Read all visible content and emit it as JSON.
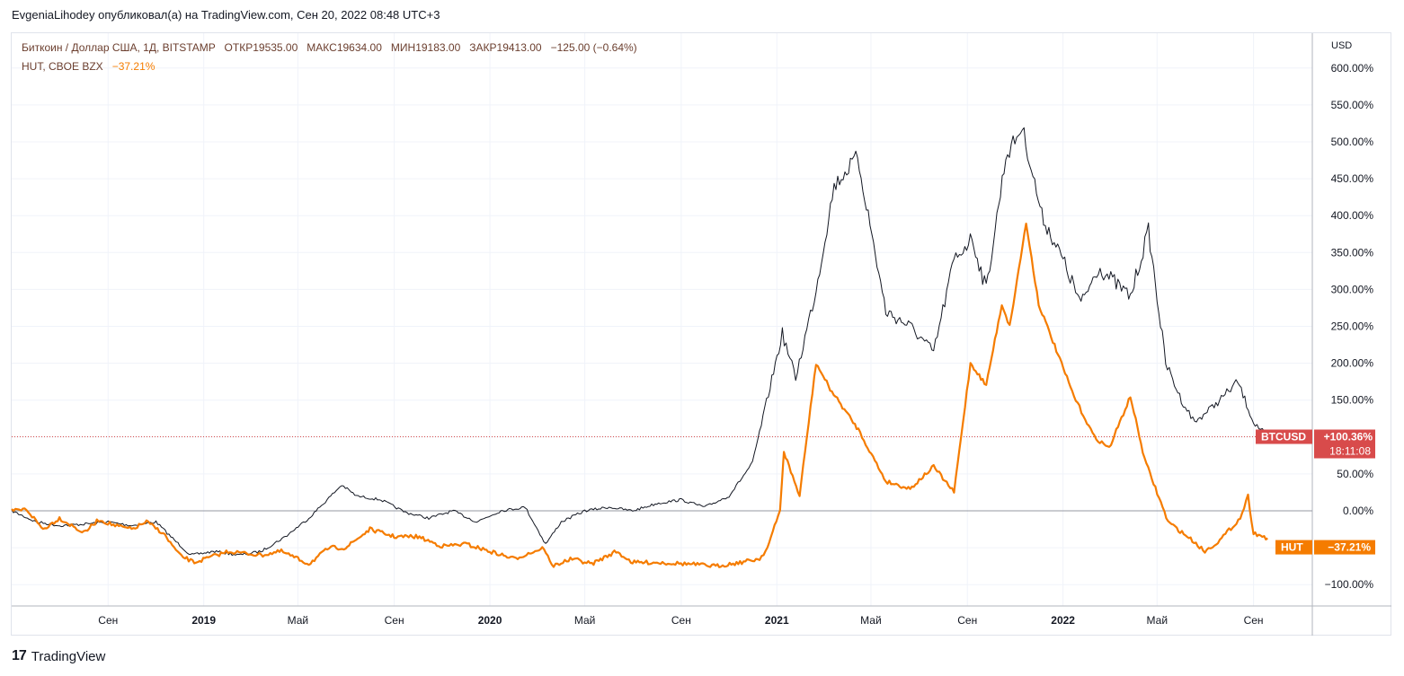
{
  "header": {
    "publish_line": "EvgeniaLihodey опубликовал(а) на TradingView.com, Сен 20, 2022 08:48 UTC+3"
  },
  "legend": {
    "main_symbol": "Биткоин / Доллар США, 1Д, BITSTAMP",
    "open_label": "ОТКР",
    "open_value": "19535.00",
    "high_label": "МАКС",
    "high_value": "19634.00",
    "low_label": "МИН",
    "low_value": "19183.00",
    "close_label": "ЗАКР",
    "close_value": "19413.00",
    "change": "−125.00 (−0.64%)",
    "compare_symbol": "HUT, CBOE BZX",
    "compare_change": "−37.21%"
  },
  "footer": {
    "brand": "TradingView",
    "logo_glyph": "17"
  },
  "chart_data": {
    "type": "line",
    "title": "Биткоин / Доллар США, 1Д, BITSTAMP vs HUT, CBOE BZX",
    "ylabel": "USD",
    "y_unit": "percent change",
    "ylim": [
      -120,
      620
    ],
    "yticks": [
      -100,
      -50,
      0,
      50,
      100,
      150,
      200,
      250,
      300,
      350,
      400,
      450,
      500,
      550,
      600
    ],
    "ytick_labels": [
      "−100.00%",
      "−50.00%",
      "0.00%",
      "50.00%",
      "",
      "150.00%",
      "200.00%",
      "250.00%",
      "300.00%",
      "350.00%",
      "400.00%",
      "450.00%",
      "500.00%",
      "550.00%",
      "600.00%"
    ],
    "xlim": [
      "2018-05-01",
      "2022-11-15"
    ],
    "xticks": [
      {
        "date": "2018-09-01",
        "label": "Сен",
        "bold": false
      },
      {
        "date": "2019-01-01",
        "label": "2019",
        "bold": true
      },
      {
        "date": "2019-05-01",
        "label": "Май",
        "bold": false
      },
      {
        "date": "2019-09-01",
        "label": "Сен",
        "bold": false
      },
      {
        "date": "2020-01-01",
        "label": "2020",
        "bold": true
      },
      {
        "date": "2020-05-01",
        "label": "Май",
        "bold": false
      },
      {
        "date": "2020-09-01",
        "label": "Сен",
        "bold": false
      },
      {
        "date": "2021-01-01",
        "label": "2021",
        "bold": true
      },
      {
        "date": "2021-05-01",
        "label": "Май",
        "bold": false
      },
      {
        "date": "2021-09-01",
        "label": "Сен",
        "bold": false
      },
      {
        "date": "2022-01-01",
        "label": "2022",
        "bold": true
      },
      {
        "date": "2022-05-01",
        "label": "Май",
        "bold": false
      },
      {
        "date": "2022-09-01",
        "label": "Сен",
        "bold": false
      }
    ],
    "baseline": 0,
    "current_line": 100.36,
    "series": [
      {
        "name": "BTCUSD",
        "color": "#131722",
        "last_label": "BTCUSD",
        "last_value": 100.36,
        "last_value_label": "+100.36%",
        "countdown": "18:11:08",
        "badge_color": "#d84b4b",
        "x": [
          "2018-05-01",
          "2018-06-01",
          "2018-07-01",
          "2018-08-01",
          "2018-09-01",
          "2018-10-01",
          "2018-11-01",
          "2018-11-20",
          "2018-12-15",
          "2019-01-15",
          "2019-02-15",
          "2019-03-15",
          "2019-04-15",
          "2019-05-15",
          "2019-06-26",
          "2019-07-15",
          "2019-08-15",
          "2019-09-15",
          "2019-10-15",
          "2019-11-15",
          "2019-12-15",
          "2020-01-15",
          "2020-02-15",
          "2020-03-12",
          "2020-04-01",
          "2020-05-01",
          "2020-06-01",
          "2020-07-01",
          "2020-08-01",
          "2020-09-01",
          "2020-10-01",
          "2020-11-01",
          "2020-12-01",
          "2021-01-08",
          "2021-01-25",
          "2021-02-20",
          "2021-03-15",
          "2021-04-14",
          "2021-05-20",
          "2021-06-20",
          "2021-07-20",
          "2021-08-15",
          "2021-09-07",
          "2021-09-25",
          "2021-10-20",
          "2021-11-10",
          "2021-12-05",
          "2022-01-01",
          "2022-01-24",
          "2022-02-15",
          "2022-03-28",
          "2022-04-20",
          "2022-05-12",
          "2022-06-01",
          "2022-06-18",
          "2022-07-15",
          "2022-08-12",
          "2022-09-01",
          "2022-09-19"
        ],
        "y": [
          0,
          -15,
          -20,
          -18,
          -15,
          -20,
          -15,
          -35,
          -60,
          -55,
          -60,
          -55,
          -35,
          -10,
          35,
          20,
          15,
          -2,
          -10,
          0,
          -15,
          0,
          5,
          -45,
          -15,
          0,
          5,
          0,
          10,
          15,
          5,
          20,
          65,
          240,
          180,
          300,
          440,
          480,
          270,
          250,
          215,
          340,
          370,
          300,
          480,
          520,
          400,
          340,
          280,
          330,
          290,
          380,
          200,
          150,
          120,
          145,
          175,
          120,
          100.36
        ]
      },
      {
        "name": "HUT",
        "color": "#f57c00",
        "last_label": "HUT",
        "last_value": -37.21,
        "last_value_label": "−37.21%",
        "badge_color": "#f57c00",
        "x": [
          "2018-05-01",
          "2018-05-20",
          "2018-06-10",
          "2018-07-01",
          "2018-08-01",
          "2018-08-20",
          "2018-09-10",
          "2018-10-01",
          "2018-10-20",
          "2018-11-10",
          "2018-12-01",
          "2018-12-20",
          "2019-02-01",
          "2019-03-15",
          "2019-04-10",
          "2019-05-15",
          "2019-06-10",
          "2019-07-01",
          "2019-08-01",
          "2019-09-01",
          "2019-10-01",
          "2019-11-01",
          "2019-12-01",
          "2020-01-01",
          "2020-02-01",
          "2020-03-10",
          "2020-03-20",
          "2020-04-15",
          "2020-05-10",
          "2020-06-10",
          "2020-07-01",
          "2020-08-01",
          "2020-09-10",
          "2020-10-15",
          "2020-11-15",
          "2020-12-10",
          "2020-12-20",
          "2021-01-05",
          "2021-01-10",
          "2021-01-30",
          "2021-02-20",
          "2021-03-10",
          "2021-04-15",
          "2021-05-20",
          "2021-06-20",
          "2021-07-20",
          "2021-08-15",
          "2021-09-05",
          "2021-09-25",
          "2021-10-15",
          "2021-10-25",
          "2021-11-15",
          "2021-12-01",
          "2022-01-15",
          "2022-02-10",
          "2022-03-01",
          "2022-03-28",
          "2022-04-15",
          "2022-05-15",
          "2022-06-15",
          "2022-07-01",
          "2022-07-20",
          "2022-08-15",
          "2022-08-25",
          "2022-09-01",
          "2022-09-19"
        ],
        "y": [
          0,
          2,
          -25,
          -10,
          -30,
          -12,
          -20,
          -25,
          -15,
          -30,
          -60,
          -70,
          -55,
          -60,
          -55,
          -72,
          -50,
          -50,
          -25,
          -35,
          -35,
          -48,
          -45,
          -55,
          -65,
          -50,
          -75,
          -65,
          -72,
          -55,
          -70,
          -70,
          -72,
          -75,
          -70,
          -65,
          -50,
          0,
          80,
          20,
          200,
          165,
          110,
          40,
          30,
          60,
          25,
          200,
          170,
          280,
          250,
          390,
          280,
          155,
          100,
          85,
          155,
          70,
          -15,
          -40,
          -55,
          -40,
          -10,
          20,
          -30,
          -37.21
        ]
      }
    ]
  }
}
